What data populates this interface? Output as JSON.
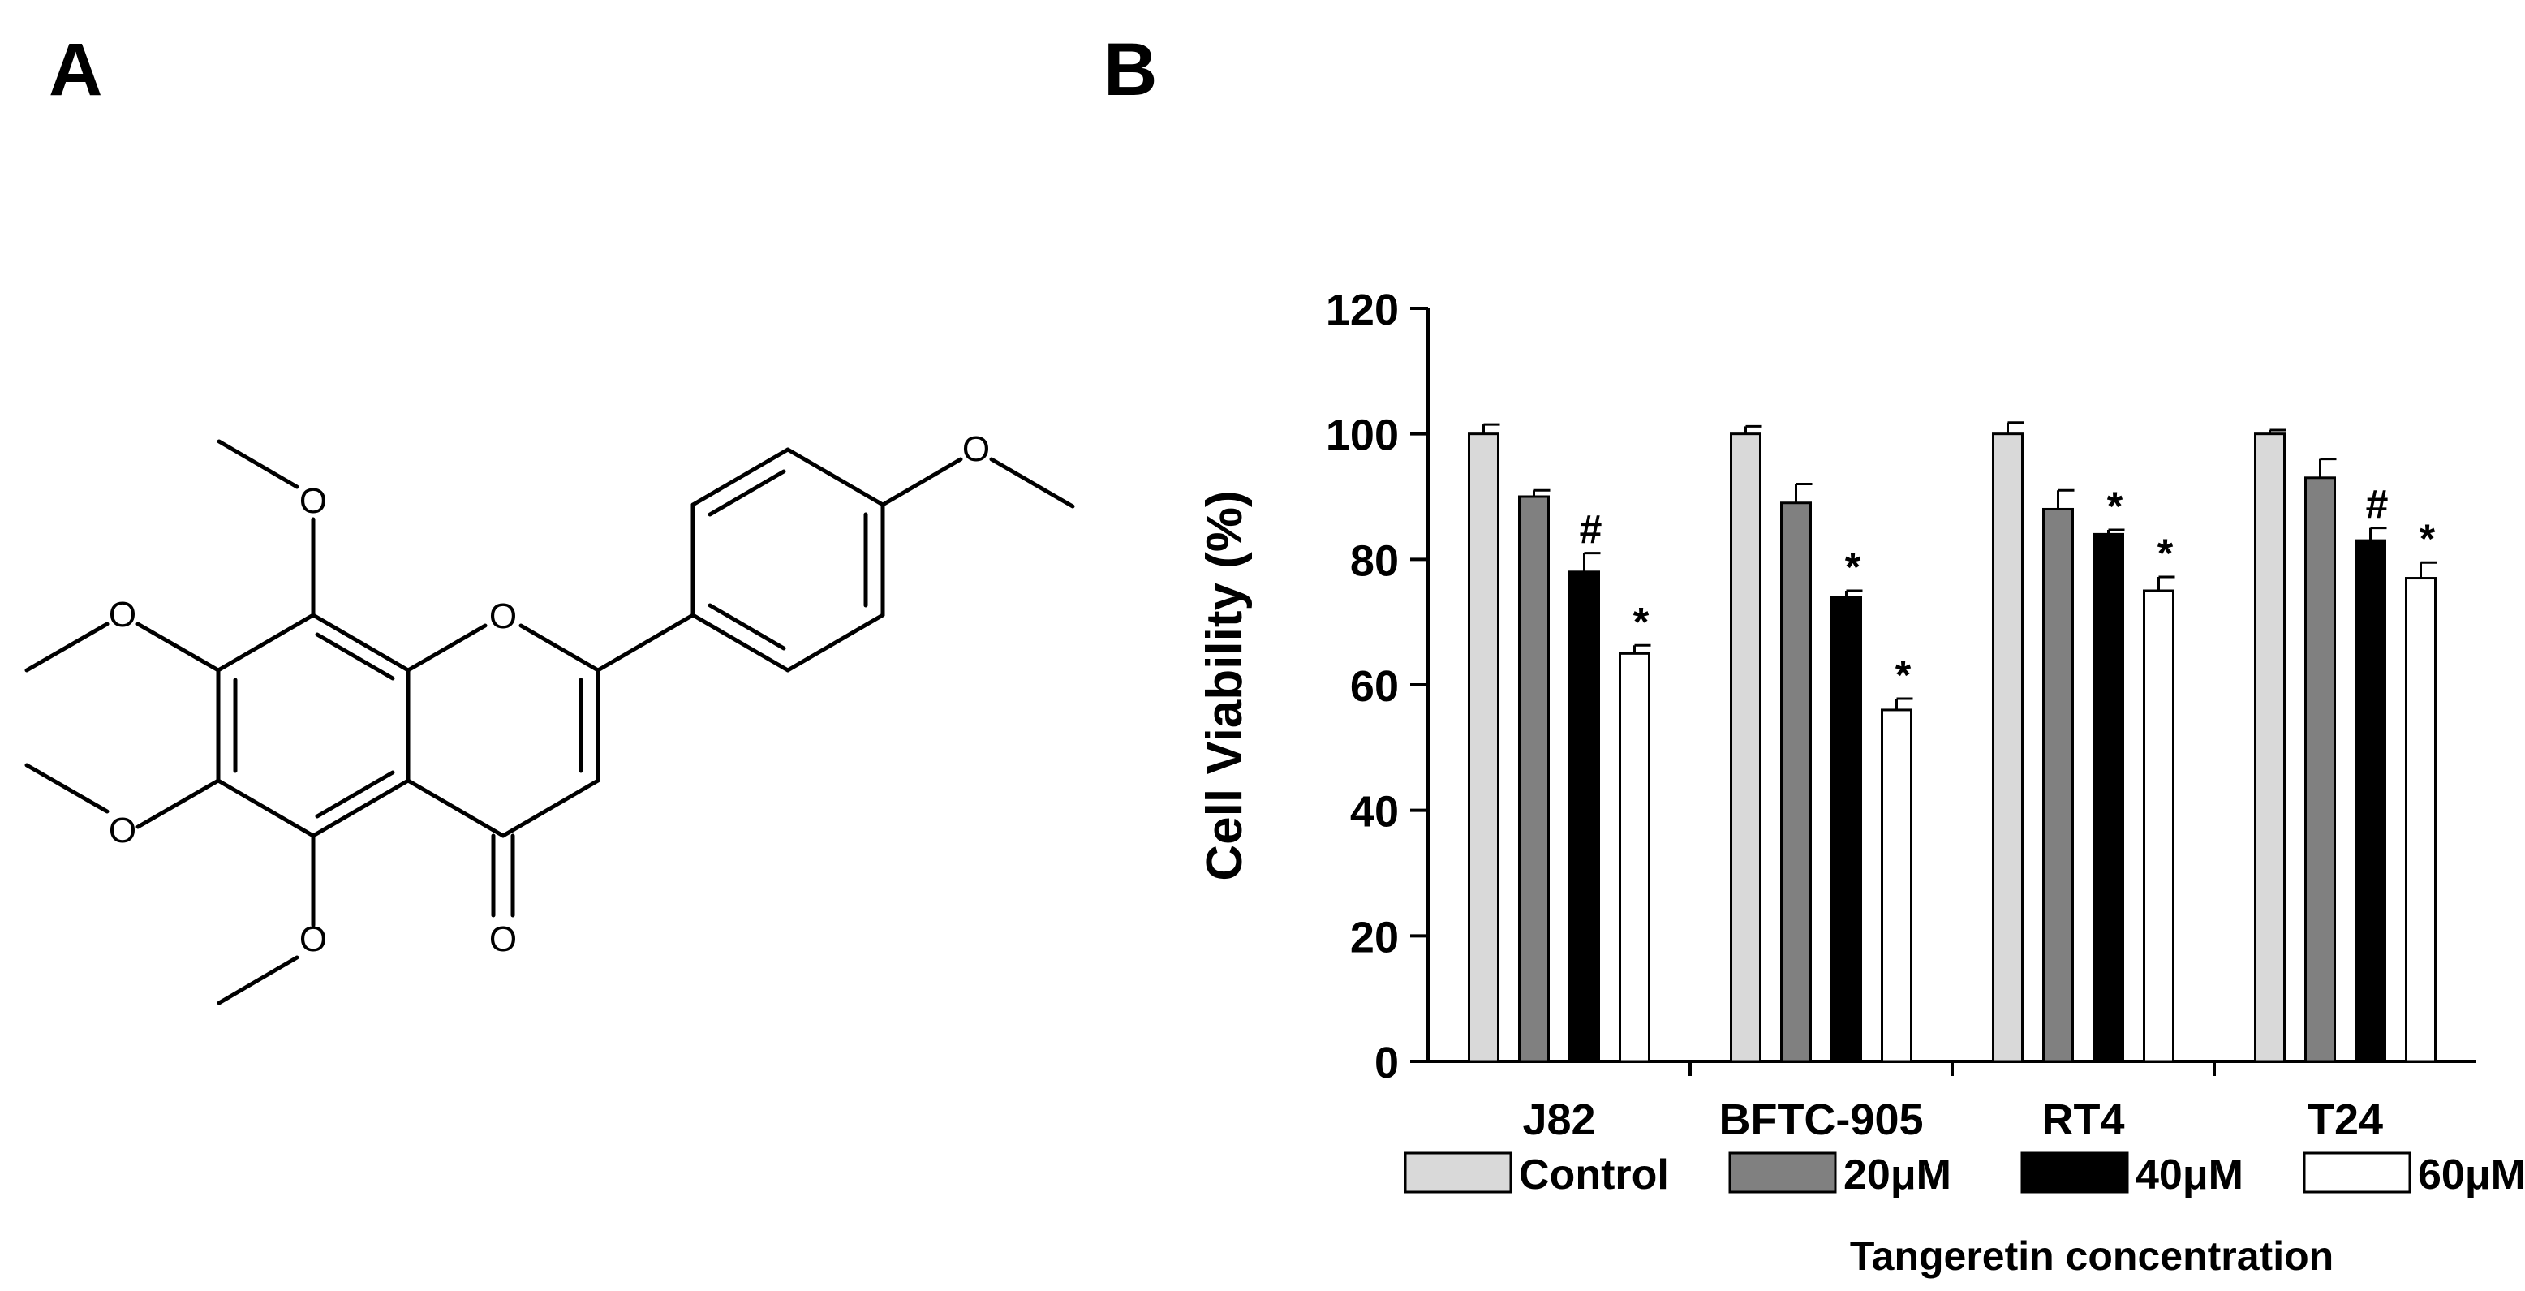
{
  "panels": {
    "a_label": "A",
    "b_label": "B"
  },
  "molecule": {
    "atom_labels": [
      "O",
      "O",
      "O",
      "O",
      "O",
      "O",
      "O"
    ]
  },
  "chart_data": {
    "type": "bar",
    "categories": [
      "J82",
      "BFTC-905",
      "RT4",
      "T24"
    ],
    "series": [
      {
        "name": "Control",
        "values": [
          100,
          100,
          100,
          100
        ],
        "errors": [
          1.5,
          1.2,
          1.8,
          0.6
        ],
        "color": "#d9d9d9",
        "marks": [
          "",
          "",
          "",
          ""
        ]
      },
      {
        "name": "20μM",
        "values": [
          90,
          89,
          88,
          93
        ],
        "errors": [
          1,
          3,
          3,
          3
        ],
        "color": "#808080",
        "marks": [
          "",
          "",
          "",
          ""
        ]
      },
      {
        "name": "40μM",
        "values": [
          78,
          74,
          84,
          83
        ],
        "errors": [
          3,
          1,
          0.7,
          2
        ],
        "color": "#000000",
        "marks": [
          "#",
          "*",
          "*",
          "#"
        ]
      },
      {
        "name": "60μM",
        "values": [
          65,
          56,
          75,
          77
        ],
        "errors": [
          1.3,
          1.8,
          2.2,
          2.5
        ],
        "color": "#ffffff",
        "marks": [
          "*",
          "*",
          "*",
          "*"
        ]
      }
    ],
    "ylabel": "Cell Viability (%)",
    "xlabel": "Tangeretin concentration",
    "ylim": [
      0,
      120
    ],
    "yticks": [
      "0",
      "20",
      "40",
      "60",
      "80",
      "100",
      "120"
    ],
    "grid": false,
    "legend_position": "bottom"
  }
}
